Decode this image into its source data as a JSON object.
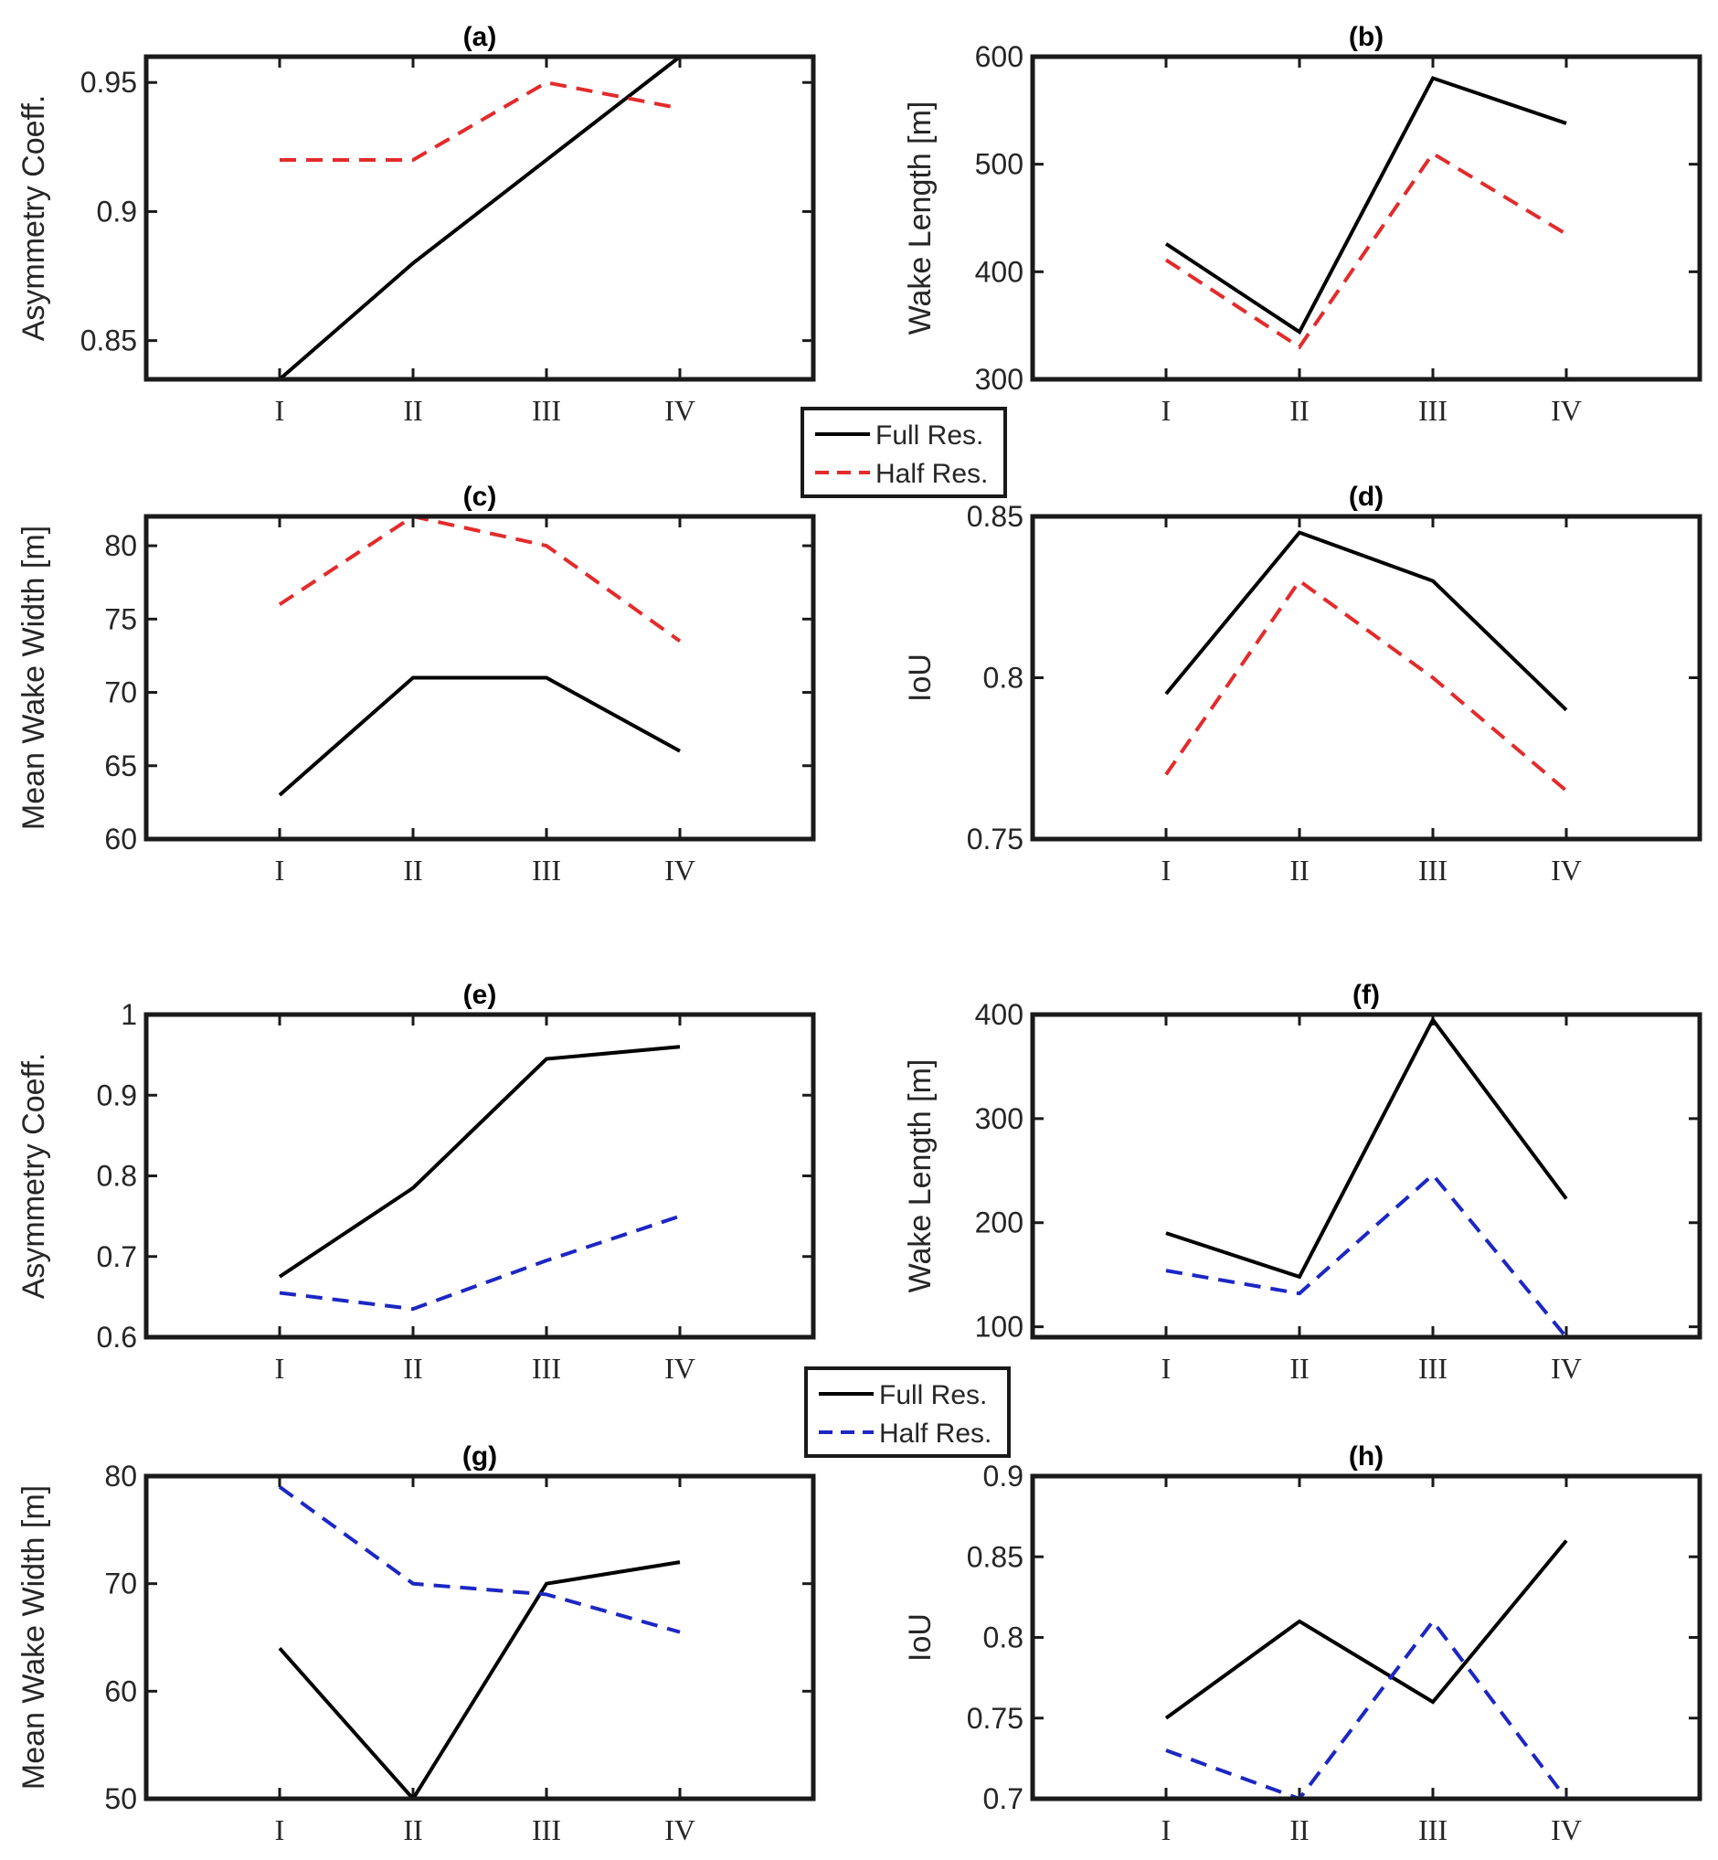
{
  "figure": {
    "colors": {
      "full": "#000000",
      "half_top": "#e32b2b",
      "half_bottom": "#1c27c4",
      "axes": "#1a1a1a",
      "text": "#262626"
    }
  },
  "legends": [
    {
      "entries": [
        {
          "label": "Full Res.",
          "series": "full"
        },
        {
          "label": "Half Res.",
          "series": "half"
        }
      ],
      "half_color": "#e32b2b"
    },
    {
      "entries": [
        {
          "label": "Full Res.",
          "series": "full"
        },
        {
          "label": "Half Res.",
          "series": "half"
        }
      ],
      "half_color": "#1c27c4"
    }
  ],
  "chart_data": [
    {
      "type": "line",
      "title": "(a)",
      "ylabel": "Asymmetry Coeff.",
      "xlabel": "",
      "categories": [
        "I",
        "II",
        "III",
        "IV"
      ],
      "ylim": [
        0.835,
        0.96
      ],
      "yticks": [
        0.85,
        0.9,
        0.95
      ],
      "ytick_labels": [
        "0.85",
        "0.9",
        "0.95"
      ],
      "series": [
        {
          "name": "Full Res.",
          "values": [
            0.835,
            0.88,
            0.92,
            0.96
          ]
        },
        {
          "name": "Half Res.",
          "values": [
            0.92,
            0.92,
            0.95,
            0.94
          ]
        }
      ]
    },
    {
      "type": "line",
      "title": "(b)",
      "ylabel": "Wake Length [m]",
      "xlabel": "",
      "categories": [
        "I",
        "II",
        "III",
        "IV"
      ],
      "ylim": [
        300,
        600
      ],
      "yticks": [
        300,
        400,
        500,
        600
      ],
      "ytick_labels": [
        "300",
        "400",
        "500",
        "600"
      ],
      "series": [
        {
          "name": "Full Res.",
          "values": [
            426,
            344,
            580,
            538
          ]
        },
        {
          "name": "Half Res.",
          "values": [
            411,
            330,
            510,
            435
          ]
        }
      ]
    },
    {
      "type": "line",
      "title": "(c)",
      "ylabel": "Mean Wake Width [m]",
      "xlabel": "",
      "categories": [
        "I",
        "II",
        "III",
        "IV"
      ],
      "ylim": [
        60,
        82
      ],
      "yticks": [
        60,
        65,
        70,
        75,
        80
      ],
      "ytick_labels": [
        "60",
        "65",
        "70",
        "75",
        "80"
      ],
      "series": [
        {
          "name": "Full Res.",
          "values": [
            63,
            71,
            71,
            66
          ]
        },
        {
          "name": "Half Res.",
          "values": [
            76,
            82,
            80,
            73.5
          ]
        }
      ]
    },
    {
      "type": "line",
      "title": "(d)",
      "ylabel": "IoU",
      "xlabel": "",
      "categories": [
        "I",
        "II",
        "III",
        "IV"
      ],
      "ylim": [
        0.75,
        0.85
      ],
      "yticks": [
        0.75,
        0.8,
        0.85
      ],
      "ytick_labels": [
        "0.75",
        "0.8",
        "0.85"
      ],
      "series": [
        {
          "name": "Full Res.",
          "values": [
            0.795,
            0.845,
            0.83,
            0.79
          ]
        },
        {
          "name": "Half Res.",
          "values": [
            0.77,
            0.83,
            0.8,
            0.765
          ]
        }
      ]
    },
    {
      "type": "line",
      "title": "(e)",
      "ylabel": "Asymmetry Coeff.",
      "xlabel": "",
      "categories": [
        "I",
        "II",
        "III",
        "IV"
      ],
      "ylim": [
        0.6,
        1.0
      ],
      "yticks": [
        0.6,
        0.7,
        0.8,
        0.9,
        1.0
      ],
      "ytick_labels": [
        "0.6",
        "0.7",
        "0.8",
        "0.9",
        "1"
      ],
      "series": [
        {
          "name": "Full Res.",
          "values": [
            0.675,
            0.785,
            0.945,
            0.96
          ]
        },
        {
          "name": "Half Res.",
          "values": [
            0.655,
            0.635,
            0.695,
            0.75
          ]
        }
      ]
    },
    {
      "type": "line",
      "title": "(f)",
      "ylabel": "Wake Length [m]",
      "xlabel": "",
      "categories": [
        "I",
        "II",
        "III",
        "IV"
      ],
      "ylim": [
        90,
        400
      ],
      "yticks": [
        100,
        200,
        300,
        400
      ],
      "ytick_labels": [
        "100",
        "200",
        "300",
        "400"
      ],
      "series": [
        {
          "name": "Full Res.",
          "values": [
            190,
            148,
            395,
            223
          ]
        },
        {
          "name": "Half Res.",
          "values": [
            154,
            132,
            246,
            90
          ]
        }
      ]
    },
    {
      "type": "line",
      "title": "(g)",
      "ylabel": "Mean Wake Width [m]",
      "xlabel": "",
      "categories": [
        "I",
        "II",
        "III",
        "IV"
      ],
      "ylim": [
        50,
        80
      ],
      "yticks": [
        50,
        60,
        70,
        80
      ],
      "ytick_labels": [
        "50",
        "60",
        "70",
        "80"
      ],
      "series": [
        {
          "name": "Full Res.",
          "values": [
            64,
            50,
            70,
            72
          ]
        },
        {
          "name": "Half Res.",
          "values": [
            79,
            70,
            69,
            65.5
          ]
        }
      ]
    },
    {
      "type": "line",
      "title": "(h)",
      "ylabel": "IoU",
      "xlabel": "",
      "categories": [
        "I",
        "II",
        "III",
        "IV"
      ],
      "ylim": [
        0.7,
        0.9
      ],
      "yticks": [
        0.7,
        0.75,
        0.8,
        0.85,
        0.9
      ],
      "ytick_labels": [
        "0.7",
        "0.75",
        "0.8",
        "0.85",
        "0.9"
      ],
      "series": [
        {
          "name": "Full Res.",
          "values": [
            0.75,
            0.81,
            0.76,
            0.86
          ]
        },
        {
          "name": "Half Res.",
          "values": [
            0.73,
            0.7,
            0.81,
            0.7
          ]
        }
      ]
    }
  ]
}
